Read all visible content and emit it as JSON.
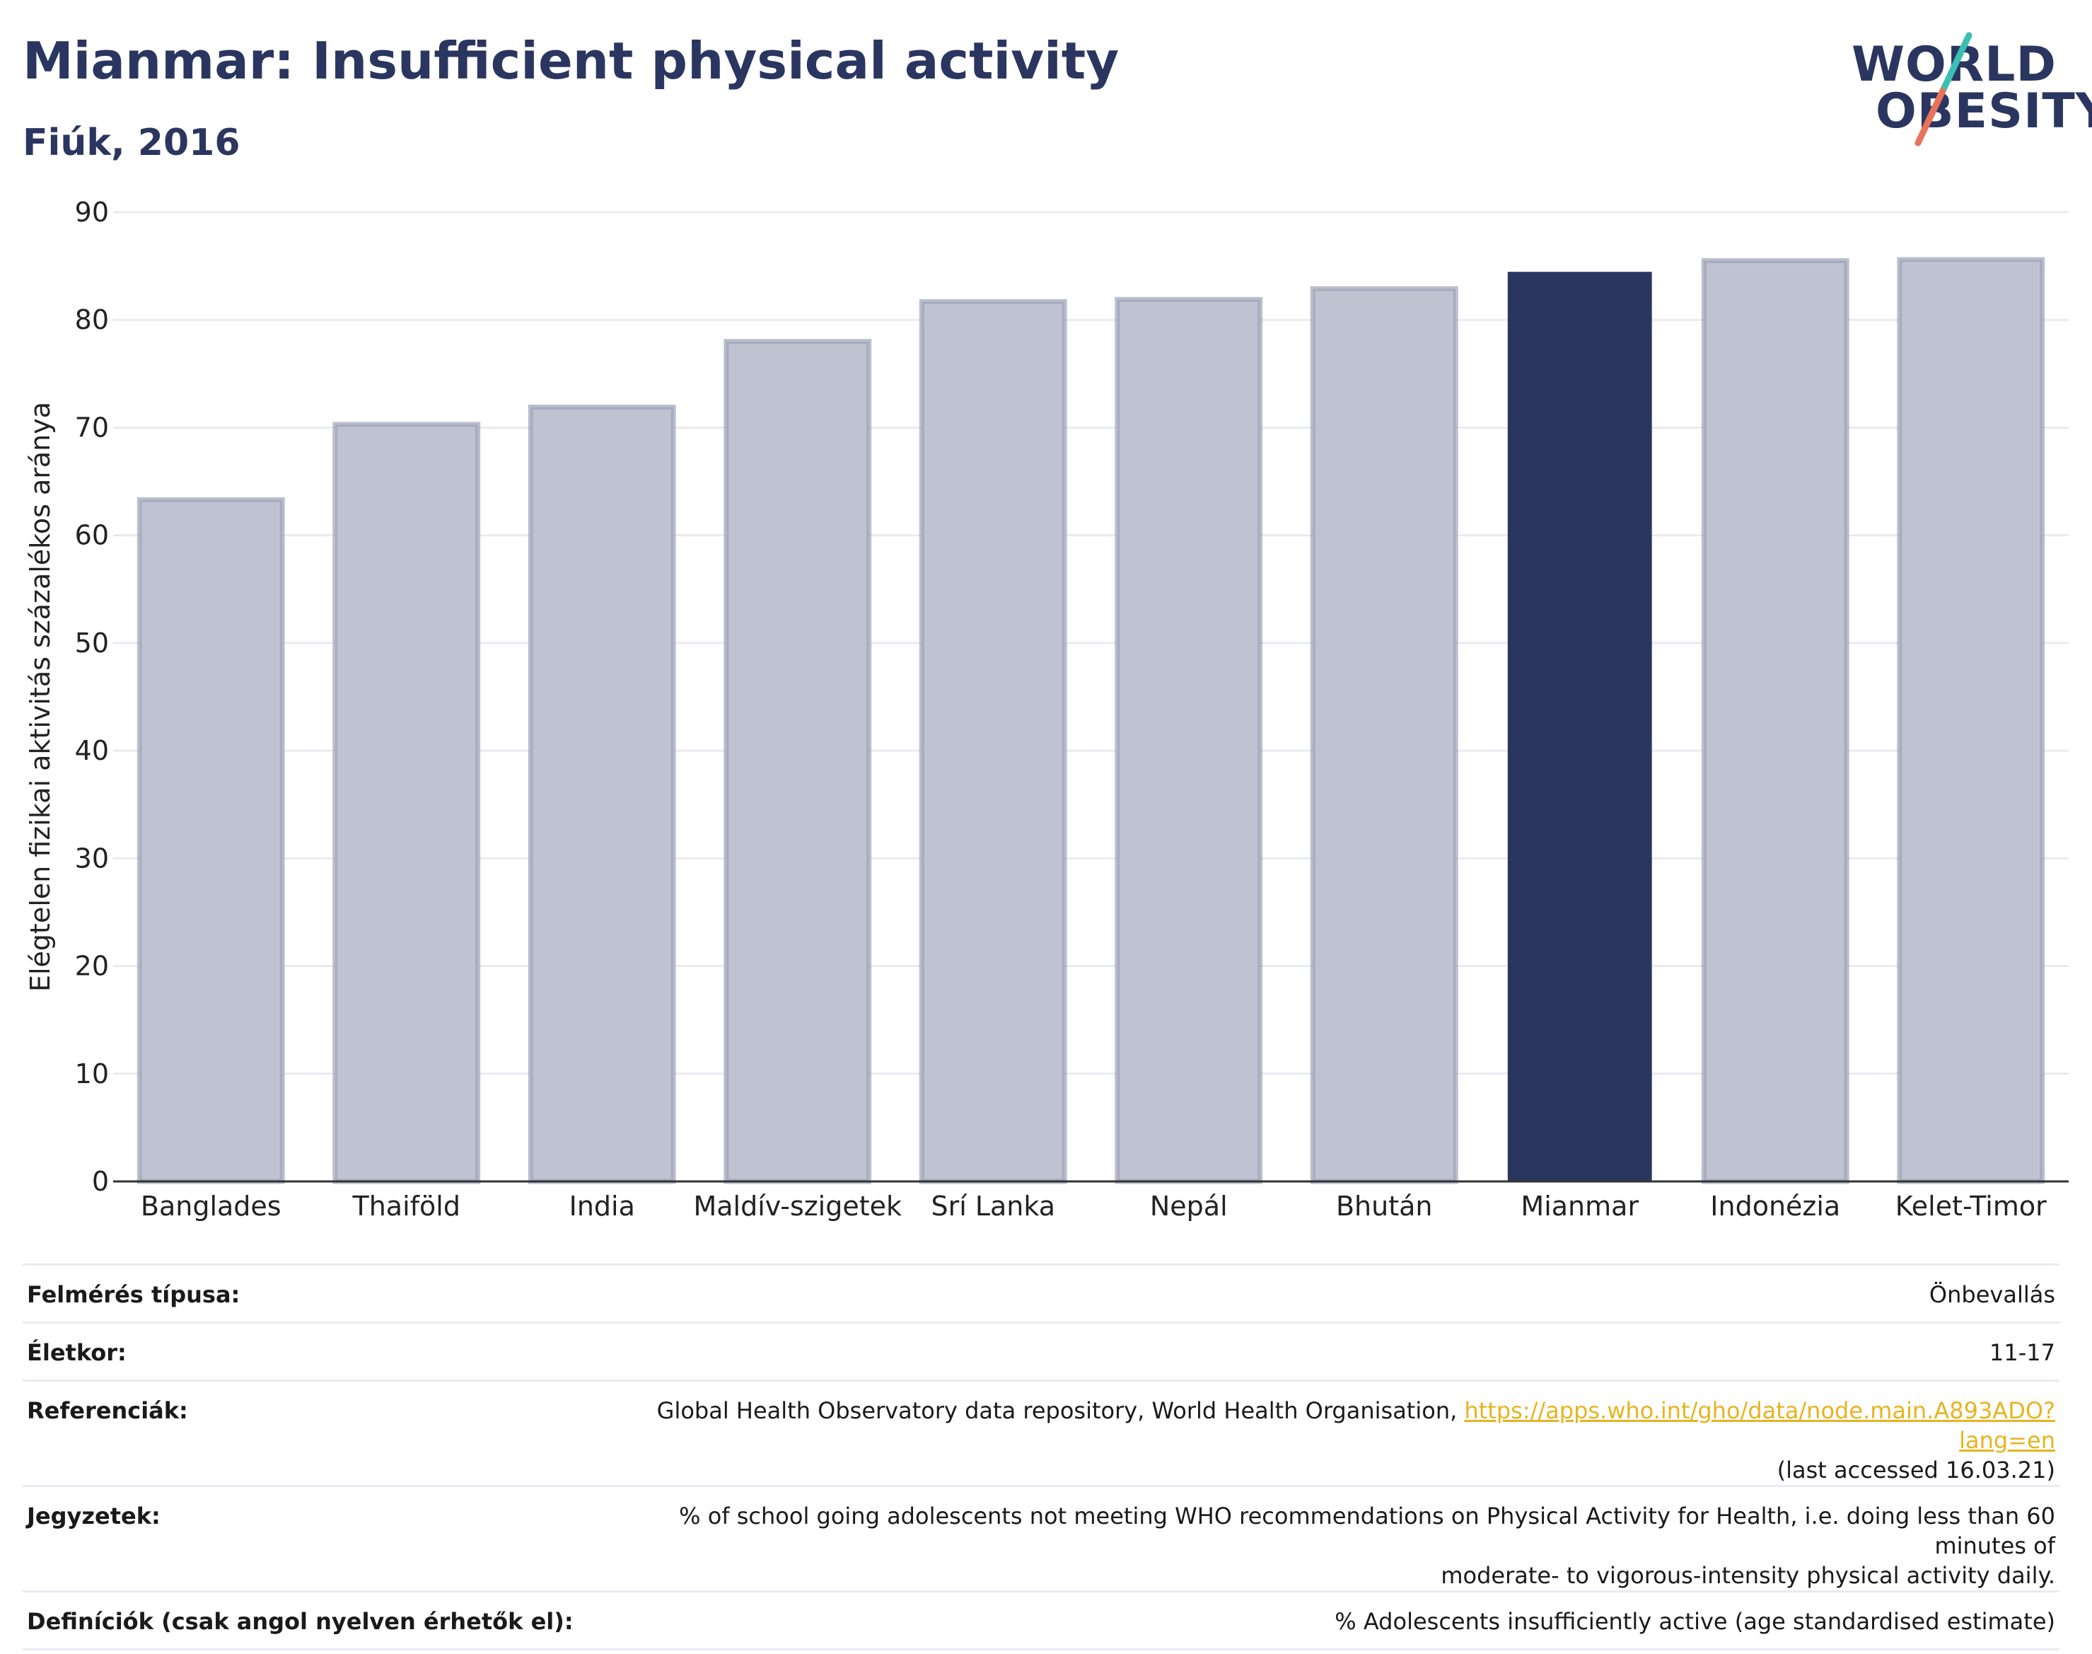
{
  "title": "Mianmar: Insufficient physical activity",
  "subtitle": "Fiúk, 2016",
  "logo": {
    "line1": "WORLD",
    "line2": "OBESITY"
  },
  "colors": {
    "highlight": "#2b3660",
    "bar": "#bfc3d1",
    "bar_border": "#9ca2b8",
    "brand": "#2b3660",
    "link": "#e6b422"
  },
  "chart_data": {
    "type": "bar",
    "categories": [
      "Banglades",
      "Thaiföld",
      "India",
      "Maldív-szigetek",
      "Srí Lanka",
      "Nepál",
      "Bhután",
      "Mianmar",
      "Indonézia",
      "Kelet-Timor"
    ],
    "values": [
      63.3,
      70.3,
      71.9,
      78.0,
      81.7,
      81.9,
      82.9,
      84.4,
      85.5,
      85.6
    ],
    "highlight": "Mianmar",
    "title": "Mianmar: Insufficient physical activity",
    "subtitle": "Fiúk, 2016",
    "xlabel": "",
    "ylabel": "Elégtelen fizikai aktivitás százalékos aránya",
    "ylim": [
      0,
      90
    ],
    "yticks": [
      0,
      10,
      20,
      30,
      40,
      50,
      60,
      70,
      80,
      90
    ],
    "grid": true
  },
  "info": {
    "survey_label": "Felmérés típusa:",
    "survey_value": "Önbevallás",
    "age_label": "Életkor:",
    "age_value": "11-17",
    "ref_label": "Referenciák:",
    "ref_text": "Global Health Observatory data repository, World Health Organisation, ",
    "ref_link": "https://apps.who.int/gho/data/node.main.A893ADO?lang=en",
    "ref_access": "(last accessed 16.03.21)",
    "notes_label": "Jegyzetek:",
    "notes_line1": "% of school going adolescents not meeting WHO recommendations on Physical Activity for Health, i.e. doing less than 60 minutes of",
    "notes_line2": "moderate- to vigorous-intensity physical activity daily.",
    "def_label": "Definíciók (csak angol nyelven érhetők el):",
    "def_value": "% Adolescents insufficiently active (age standardised estimate)"
  }
}
